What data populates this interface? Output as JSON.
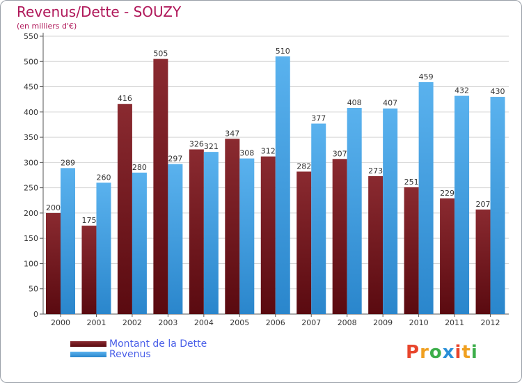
{
  "chart_data": {
    "type": "bar",
    "title": "Revenus/Dette - SOUZY",
    "subtitle": "(en milliers d'€)",
    "categories": [
      "2000",
      "2001",
      "2002",
      "2003",
      "2004",
      "2005",
      "2006",
      "2007",
      "2008",
      "2009",
      "2010",
      "2011",
      "2012"
    ],
    "series": [
      {
        "name": "Montant de la Dette",
        "color": "#7a1e24",
        "values": [
          200,
          175,
          416,
          505,
          326,
          347,
          312,
          282,
          307,
          273,
          251,
          229,
          207
        ]
      },
      {
        "name": "Revenus",
        "color": "#4aa6e6",
        "values": [
          289,
          260,
          280,
          297,
          321,
          308,
          510,
          377,
          408,
          407,
          459,
          432,
          430
        ]
      }
    ],
    "ylim": [
      0,
      550
    ],
    "yticks": [
      0,
      50,
      100,
      150,
      200,
      250,
      300,
      350,
      400,
      450,
      500,
      550
    ],
    "grid": true,
    "legend": "bottom-left"
  },
  "logo": {
    "letters": [
      "P",
      "r",
      "o",
      "x",
      "i",
      "t",
      "i"
    ],
    "colors": [
      "#e8452c",
      "#f0a020",
      "#3cae4a",
      "#2a8fd8",
      "#e8452c",
      "#f0a020",
      "#3cae4a"
    ]
  }
}
